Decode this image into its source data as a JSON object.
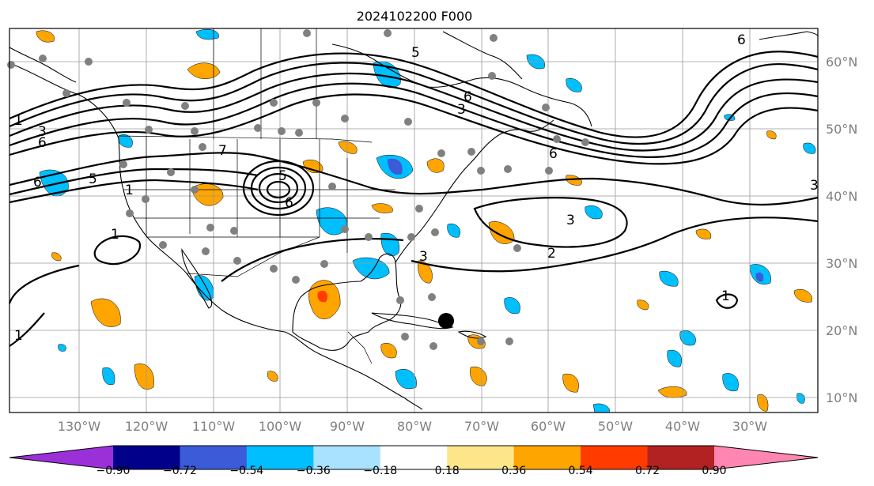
{
  "title": "2024102200 F000",
  "lon_ticks": [
    "130°W",
    "120°W",
    "110°W",
    "100°W",
    "90°W",
    "80°W",
    "70°W",
    "60°W",
    "50°W",
    "40°W",
    "30°W"
  ],
  "lat_ticks": [
    "60°N",
    "50°N",
    "40°N",
    "30°N",
    "20°N",
    "10°N"
  ],
  "colorbar": {
    "colors": [
      "#9b30d9",
      "#00008b",
      "#3b5bd9",
      "#00bfff",
      "#a9e2ff",
      "#ffffff",
      "#fde68a",
      "#ffa500",
      "#ff3b00",
      "#b22222",
      "#ff86b0"
    ],
    "labels": [
      "−0.90",
      "−0.72",
      "−0.54",
      "−0.36",
      "−0.18",
      "0.18",
      "0.36",
      "0.54",
      "0.72",
      "0.90"
    ]
  },
  "contour_labels": [
    "1",
    "3",
    "6",
    "5",
    "6",
    "6",
    "5",
    "3",
    "7",
    "6",
    "5",
    "3",
    "6",
    "3",
    "2",
    "1",
    "3",
    "1",
    "1",
    "6",
    "1"
  ],
  "colors": {
    "positive": "#ffa500",
    "negative": "#00bfff",
    "obs_marker": "#808080",
    "grid": "#9a9a9a"
  }
}
